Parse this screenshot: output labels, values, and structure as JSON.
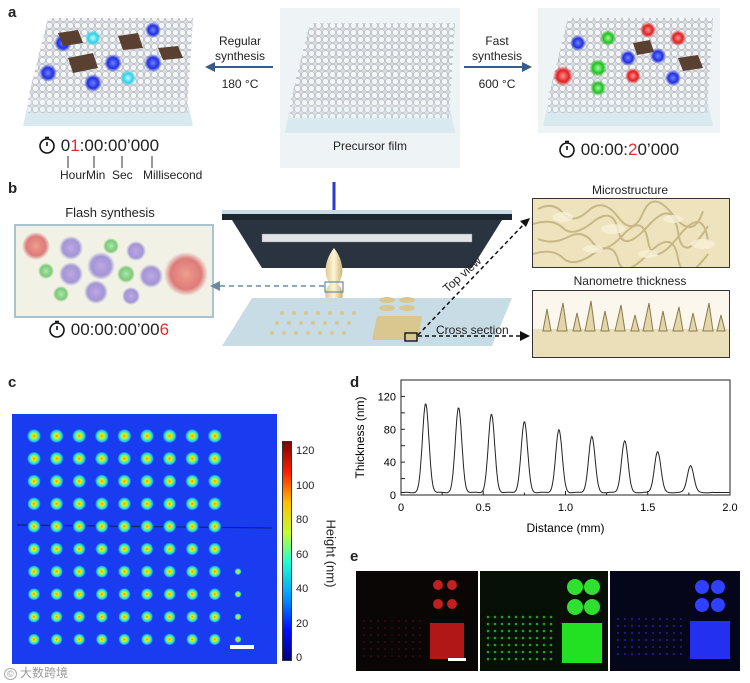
{
  "panels": {
    "a": "a",
    "b": "b",
    "c": "c",
    "d": "d",
    "e": "e"
  },
  "panel_a": {
    "left_arrow_line1": "Regular",
    "left_arrow_line2": "synthesis",
    "left_arrow_temp": "180 °C",
    "right_arrow_line1": "Fast",
    "right_arrow_line2": "synthesis",
    "right_arrow_temp": "600 °C",
    "center_caption": "Precursor film",
    "left_timer_pre": "0",
    "left_timer_red": "1",
    "left_timer_post": ":00:00’000",
    "right_timer_pre": "00:00:",
    "right_timer_red": "2",
    "right_timer_post": "0’000",
    "unit_hour": "Hour",
    "unit_min": "Min",
    "unit_sec": "Sec",
    "unit_ms": "Millisecond"
  },
  "panel_b": {
    "flash_title": "Flash synthesis",
    "flash_timer_pre": "00:00:00’00",
    "flash_timer_red": "6",
    "microstructure": "Microstructure",
    "nanometre": "Nanometre thickness",
    "top_view": "Top view",
    "cross_section": "Cross section"
  },
  "panel_c": {
    "colorbar_label": "Height (nm)",
    "colorbar_ticks": [
      "120",
      "100",
      "80",
      "60",
      "40",
      "20",
      "0"
    ]
  },
  "chart_data": {
    "type": "line",
    "xlabel": "Distance (mm)",
    "ylabel": "Thickness (nm)",
    "xlim": [
      0,
      2.0
    ],
    "ylim": [
      0,
      140
    ],
    "xticks": [
      "0",
      "0.5",
      "1.0",
      "1.5",
      "2.0"
    ],
    "yticks": [
      "0",
      "40",
      "80",
      "120"
    ],
    "yticks_all": [
      "0",
      "20",
      "40",
      "60",
      "80",
      "100",
      "120",
      "140"
    ],
    "peaks": [
      {
        "x": 0.15,
        "y": 111
      },
      {
        "x": 0.35,
        "y": 106
      },
      {
        "x": 0.55,
        "y": 98
      },
      {
        "x": 0.75,
        "y": 89
      },
      {
        "x": 0.96,
        "y": 79
      },
      {
        "x": 1.16,
        "y": 71
      },
      {
        "x": 1.36,
        "y": 66
      },
      {
        "x": 1.56,
        "y": 53
      },
      {
        "x": 1.76,
        "y": 36
      }
    ],
    "baseline": 3
  },
  "watermark": "大数跨境",
  "colors": {
    "red": "#e03030",
    "panel_c_bg": "#1a3cf0",
    "green": "#22e022",
    "blue": "#2430f0"
  }
}
